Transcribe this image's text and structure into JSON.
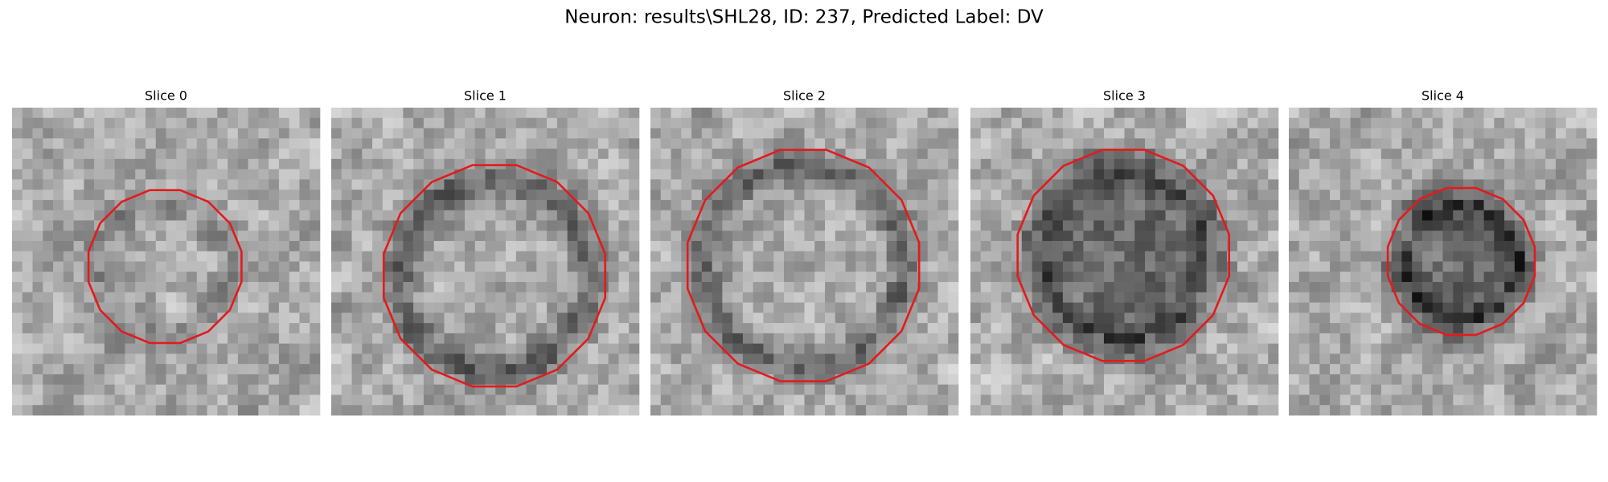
{
  "title": "Neuron: results\\SHL28, ID: 237, Predicted Label: DV",
  "panels": [
    {
      "title": "Slice 0"
    },
    {
      "title": "Slice 1"
    },
    {
      "title": "Slice 2"
    },
    {
      "title": "Slice 3"
    },
    {
      "title": "Slice 4"
    }
  ]
}
